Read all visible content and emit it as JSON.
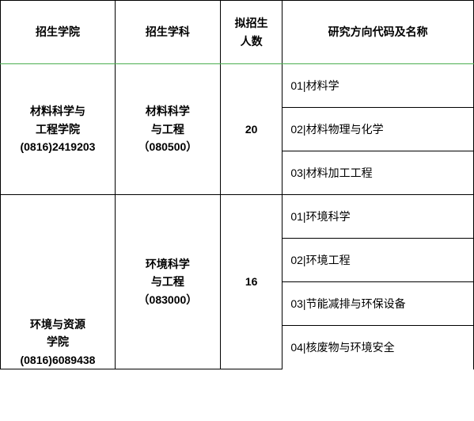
{
  "headers": {
    "college": "招生学院",
    "discipline": "招生学科",
    "count": "拟招生\n人数",
    "direction": "研究方向代码及名称"
  },
  "rows": [
    {
      "college": "材料科学与\n工程学院\n(0816)2419203",
      "discipline": "材料科学\n与工程\n（080500）",
      "count": "20",
      "directions": [
        "01|材料学",
        "02|材料物理与化学",
        "03|材料加工工程"
      ]
    },
    {
      "college": "环境与资源\n学院\n(0816)6089438",
      "discipline": "环境科学\n与工程\n（083000）",
      "count": "16",
      "directions": [
        "01|环境科学",
        "02|环境工程",
        "03|节能减排与环保设备",
        "04|核废物与环境安全"
      ]
    }
  ],
  "colors": {
    "border": "#000000",
    "header_bottom": "#4caf50",
    "background": "#ffffff"
  }
}
